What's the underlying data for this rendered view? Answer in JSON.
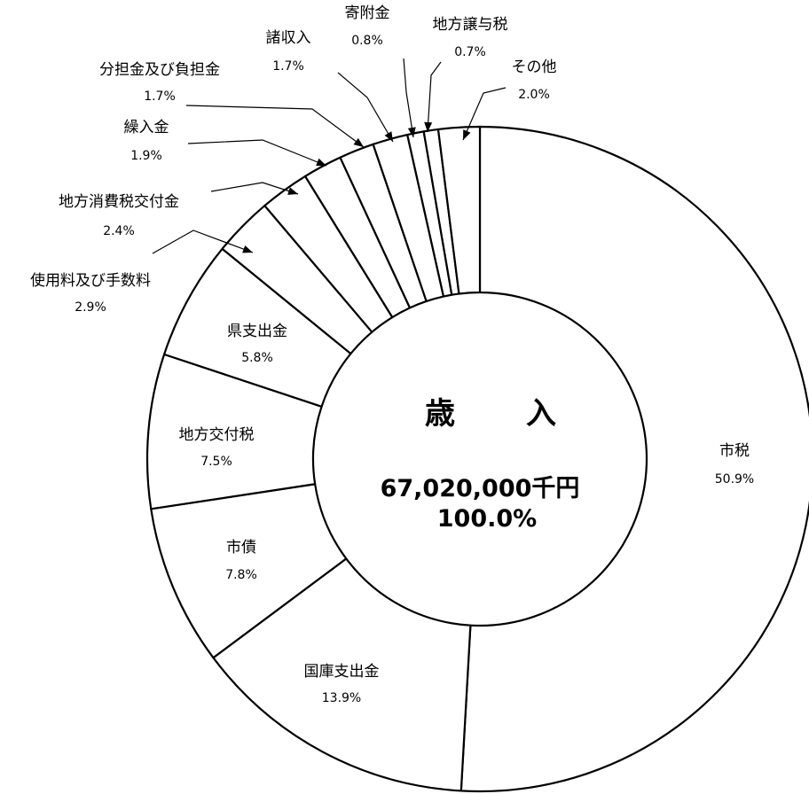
{
  "chart_data": {
    "type": "pie",
    "style": "donut",
    "center": {
      "title_left": "歳",
      "title_right": "入",
      "total": "67,020,000千円",
      "percent": "100.0%"
    },
    "slices": [
      {
        "name": "市税",
        "value": 50.9,
        "label": "50.9%"
      },
      {
        "name": "国庫支出金",
        "value": 13.9,
        "label": "13.9%"
      },
      {
        "name": "市債",
        "value": 7.8,
        "label": "7.8%"
      },
      {
        "name": "地方交付税",
        "value": 7.5,
        "label": "7.5%"
      },
      {
        "name": "県支出金",
        "value": 5.8,
        "label": "5.8%"
      },
      {
        "name": "使用料及び手数料",
        "value": 2.9,
        "label": "2.9%"
      },
      {
        "name": "地方消費税交付金",
        "value": 2.4,
        "label": "2.4%"
      },
      {
        "name": "繰入金",
        "value": 1.9,
        "label": "1.9%"
      },
      {
        "name": "分担金及び負担金",
        "value": 1.7,
        "label": "1.7%"
      },
      {
        "name": "諸収入",
        "value": 1.7,
        "label": "1.7%"
      },
      {
        "name": "寄附金",
        "value": 0.8,
        "label": "0.8%"
      },
      {
        "name": "地方譲与税",
        "value": 0.7,
        "label": "0.7%"
      },
      {
        "name": "その他",
        "value": 2.0,
        "label": "2.0%"
      }
    ],
    "start": "12 o'clock",
    "direction": "clockwise",
    "colors": {
      "fill": "#ffffff",
      "stroke": "#000000"
    }
  }
}
